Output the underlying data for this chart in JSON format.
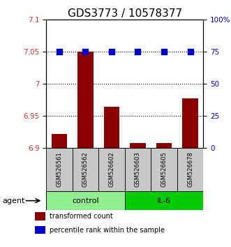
{
  "title": "GDS3773 / 10578377",
  "samples": [
    "GSM526561",
    "GSM526562",
    "GSM526602",
    "GSM526603",
    "GSM526605",
    "GSM526678"
  ],
  "bar_values": [
    6.922,
    7.05,
    6.965,
    6.908,
    6.908,
    6.978
  ],
  "percentile_values": [
    75,
    75,
    75,
    75,
    75,
    75
  ],
  "bar_bottom": 6.9,
  "ylim_left": [
    6.9,
    7.1
  ],
  "ylim_right": [
    0,
    100
  ],
  "yticks_left": [
    6.9,
    6.95,
    7.0,
    7.05,
    7.1
  ],
  "yticks_right": [
    0,
    25,
    50,
    75,
    100
  ],
  "ytick_labels_left": [
    "6.9",
    "6.95",
    "7",
    "7.05",
    "7.1"
  ],
  "ytick_labels_right": [
    "0",
    "25",
    "50",
    "75",
    "100%"
  ],
  "hlines": [
    7.05,
    7.0,
    6.95
  ],
  "groups": [
    {
      "label": "control",
      "indices": [
        0,
        1,
        2
      ],
      "color": "#90EE90"
    },
    {
      "label": "IL-6",
      "indices": [
        3,
        4,
        5
      ],
      "color": "#00CC00"
    }
  ],
  "bar_color": "#8B0000",
  "dot_color": "#0000CC",
  "agent_label": "agent",
  "legend": [
    {
      "label": "transformed count",
      "color": "#8B0000"
    },
    {
      "label": "percentile rank within the sample",
      "color": "#0000CC"
    }
  ],
  "title_fontsize": 11,
  "bar_width": 0.6,
  "dot_size": 30
}
